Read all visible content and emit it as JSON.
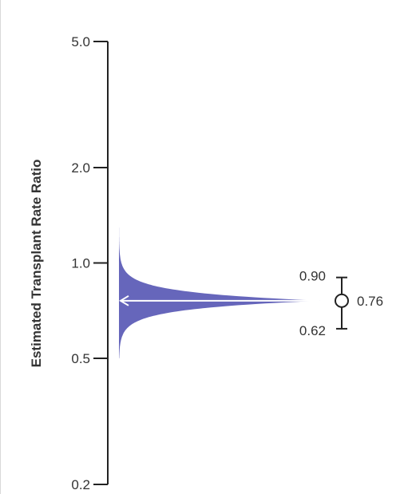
{
  "chart_data": {
    "type": "density",
    "ylabel": "Estimated Transplant Rate Ratio",
    "y_scale": "log",
    "ylim": [
      0.2,
      5.0
    ],
    "yticks": [
      0.2,
      0.5,
      1.0,
      2.0,
      5.0
    ],
    "ytick_labels": [
      "0.2",
      "0.5",
      "1.0",
      "2.0",
      "5.0"
    ],
    "estimate": 0.76,
    "estimate_label": "0.76",
    "ci_lower": 0.62,
    "ci_lower_label": "0.62",
    "ci_upper": 0.9,
    "ci_upper_label": "0.90",
    "density_range": [
      0.5,
      1.34
    ],
    "fill_color": "#6666bb",
    "arrow_color": "#ffffff",
    "axis_color": "#222222",
    "grid": false
  }
}
